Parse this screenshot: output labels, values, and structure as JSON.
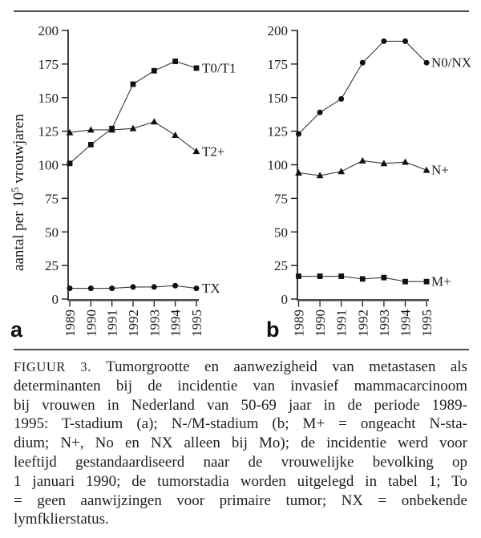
{
  "chart_data": [
    {
      "type": "line",
      "panel_label": "a",
      "x": [
        1989,
        1990,
        1991,
        1992,
        1993,
        1994,
        1995
      ],
      "series": [
        {
          "name": "T0/T1",
          "marker": "square",
          "values": [
            101,
            115,
            127,
            160,
            170,
            177,
            172
          ]
        },
        {
          "name": "T2+",
          "marker": "triangle",
          "values": [
            124,
            126,
            126,
            127,
            132,
            122,
            110
          ]
        },
        {
          "name": "TX",
          "marker": "circle",
          "values": [
            8,
            8,
            8,
            9,
            9,
            10,
            8
          ]
        }
      ],
      "ylabel": "aantal per 10⁵ vrouwjaren",
      "ylabel_parts": {
        "pre": "aantal per 10",
        "sup": "5",
        "post": " vrouwjaren"
      },
      "xlabel": "",
      "ylim": [
        0,
        200
      ],
      "yticks": [
        0,
        25,
        50,
        75,
        100,
        125,
        150,
        175,
        200
      ],
      "grid": false,
      "legend_position": "right-of-last-point"
    },
    {
      "type": "line",
      "panel_label": "b",
      "x": [
        1989,
        1990,
        1991,
        1992,
        1993,
        1994,
        1995
      ],
      "series": [
        {
          "name": "N0/NX",
          "marker": "circle",
          "values": [
            123,
            139,
            149,
            176,
            192,
            192,
            176
          ]
        },
        {
          "name": "N+",
          "marker": "triangle",
          "values": [
            94,
            92,
            95,
            103,
            101,
            102,
            96
          ]
        },
        {
          "name": "M+",
          "marker": "square",
          "values": [
            17,
            17,
            17,
            15,
            16,
            13,
            13
          ]
        }
      ],
      "ylabel": "",
      "xlabel": "",
      "ylim": [
        0,
        200
      ],
      "yticks": [
        0,
        25,
        50,
        75,
        100,
        125,
        150,
        175,
        200
      ],
      "grid": false,
      "legend_position": "right-of-last-point"
    }
  ],
  "caption": {
    "figure_label": "FIGUUR 3.",
    "lines": [
      "Tumorgrootte en aanwezigheid van metastasen als",
      "determinanten bij de incidentie van invasief mammacarcinoom",
      "bij vrouwen in Nederland van 50-69 jaar in de periode 1989-",
      "1995: T-stadium (a); N-/M-stadium (b; M+ = ongeacht N-sta-",
      "dium; N+, No en NX alleen bij Mo); de incidentie werd voor",
      "leeftijd gestandaardiseerd naar de vrouwelijke bevolking op",
      "1 januari 1990; de tumorstadia worden uitgelegd in tabel 1; To",
      "= geen aanwijzingen voor primaire tumor; NX = onbekende",
      "lymfklierstatus."
    ]
  },
  "colors": {
    "ink": "#1c1c1c",
    "marker": "#111111",
    "rule": "#4d4d4d",
    "line": "#383838",
    "background": "#ffffff"
  }
}
